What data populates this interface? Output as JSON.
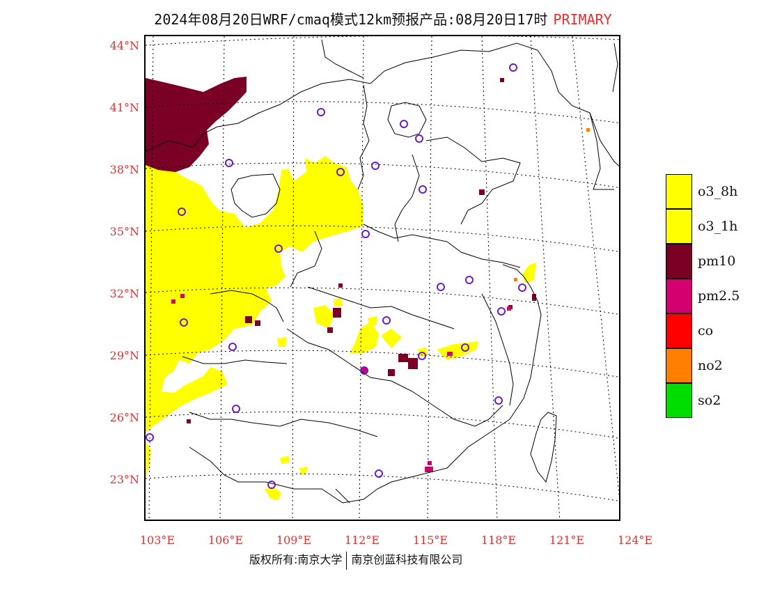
{
  "header": {
    "title": "2024年08月20日WRF/cmaq模式12km预报产品:08月20日17时",
    "tag": "PRIMARY",
    "tag_color": "#e03030"
  },
  "axes": {
    "lat_labels": [
      "44°N",
      "41°N",
      "38°N",
      "35°N",
      "32°N",
      "29°N",
      "26°N",
      "23°N"
    ],
    "lon_labels": [
      "103°E",
      "106°E",
      "109°E",
      "112°E",
      "115°E",
      "118°E",
      "121°E",
      "124°E"
    ],
    "label_color": "#e03030"
  },
  "legend": {
    "items": [
      {
        "label": "o3_8h",
        "color": "#ffff00"
      },
      {
        "label": "o3_1h",
        "color": "#ffff00"
      },
      {
        "label": "pm10",
        "color": "#7a0026"
      },
      {
        "label": "pm2.5",
        "color": "#d4006f"
      },
      {
        "label": "co",
        "color": "#ff0000"
      },
      {
        "label": "no2",
        "color": "#ff8000"
      },
      {
        "label": "so2",
        "color": "#00dd00"
      }
    ]
  },
  "footer": {
    "left": "版权所有:南京大学",
    "right": "南京创蓝科技有限公司"
  }
}
